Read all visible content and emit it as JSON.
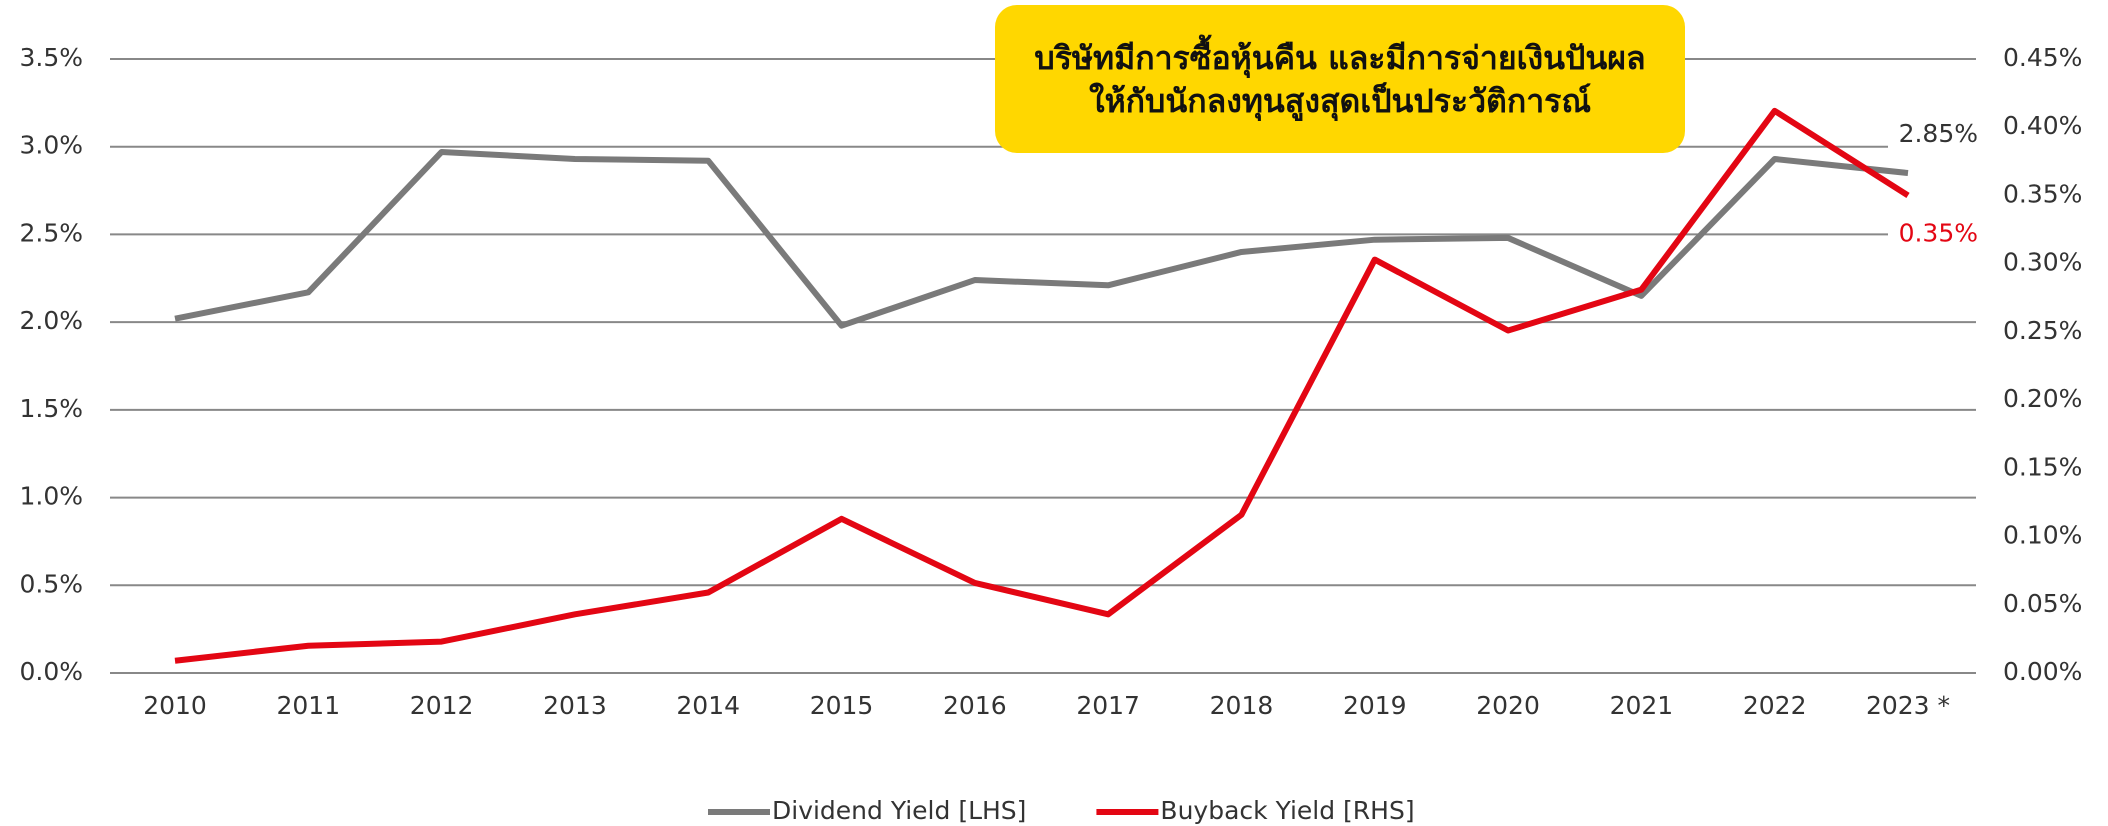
{
  "chart_data": {
    "type": "line",
    "annotation": [
      "บริษัทมีการซื้อหุ้นคืน และมีการจ่ายเงินปันผล",
      "ให้กับนักลงทุนสูงสุดเป็นประวัติการณ์"
    ],
    "categories": [
      "2010",
      "2011",
      "2012",
      "2013",
      "2014",
      "2015",
      "2016",
      "2017",
      "2018",
      "2019",
      "2020",
      "2021",
      "2022",
      "2023 *"
    ],
    "series": [
      {
        "name": "Dividend Yield [LHS]",
        "color": "#7a7a7a",
        "axis": "y",
        "values": [
          2.02,
          2.17,
          2.97,
          2.93,
          2.92,
          1.98,
          2.24,
          2.21,
          2.4,
          2.47,
          2.48,
          2.15,
          2.93,
          2.85
        ],
        "value_labels": [
          null,
          null,
          null,
          null,
          null,
          null,
          null,
          null,
          null,
          null,
          null,
          null,
          null,
          "2.85%"
        ]
      },
      {
        "name": "Buyback Yield [RHS]",
        "color": "#e30613",
        "axis": "y2",
        "values": [
          0.009,
          0.02,
          0.023,
          0.043,
          0.059,
          0.113,
          0.066,
          0.043,
          0.116,
          0.303,
          0.251,
          0.281,
          0.412,
          0.35
        ],
        "value_labels": [
          null,
          null,
          null,
          null,
          null,
          null,
          null,
          null,
          null,
          null,
          null,
          null,
          null,
          "0.35%"
        ]
      }
    ],
    "ylim": [
      0,
      3.5
    ],
    "yticks": [
      {
        "value": 0,
        "label": "0.0%"
      },
      {
        "value": 0.5,
        "label": "0.5%"
      },
      {
        "value": 1,
        "label": "1.0%"
      },
      {
        "value": 1.5,
        "label": "1.5%"
      },
      {
        "value": 2,
        "label": "2.0%"
      },
      {
        "value": 2.5,
        "label": "2.5%"
      },
      {
        "value": 3,
        "label": "3.0%"
      },
      {
        "value": 3.5,
        "label": "3.5%"
      }
    ],
    "y2lim": [
      0,
      0.45
    ],
    "y2ticks": [
      {
        "value": 0,
        "label": "0.00%"
      },
      {
        "value": 0.05,
        "label": "0.05%"
      },
      {
        "value": 0.1,
        "label": "0.10%"
      },
      {
        "value": 0.15,
        "label": "0.15%"
      },
      {
        "value": 0.2,
        "label": "0.20%"
      },
      {
        "value": 0.25,
        "label": "0.25%"
      },
      {
        "value": 0.3,
        "label": "0.30%"
      },
      {
        "value": 0.35,
        "label": "0.35%"
      },
      {
        "value": 0.4,
        "label": "0.40%"
      },
      {
        "value": 0.45,
        "label": "0.45%"
      }
    ],
    "grid": true,
    "legend": "bottom",
    "annotation_color": "#ffd700"
  }
}
